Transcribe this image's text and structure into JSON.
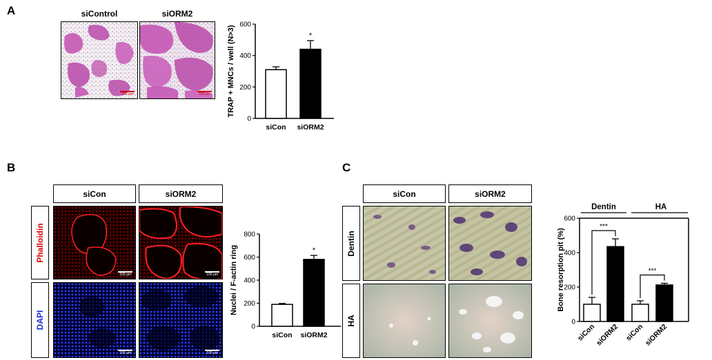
{
  "panels": {
    "A": {
      "letter": "A",
      "image_titles": [
        "siControl",
        "siORM2"
      ],
      "scale_text": "200 μm"
    },
    "B": {
      "letter": "B",
      "col_labels": [
        "siCon",
        "siORM2"
      ],
      "row_labels": [
        "Phalloidin",
        "DAPI"
      ],
      "scale_text": "100 μm"
    },
    "C": {
      "letter": "C",
      "col_labels": [
        "siCon",
        "siORM2"
      ],
      "row_labels": [
        "Dentin",
        "HA"
      ]
    }
  },
  "chart_data": [
    {
      "id": "A",
      "type": "bar",
      "categories": [
        "siCon",
        "siORM2"
      ],
      "values": [
        310,
        440
      ],
      "errors": [
        18,
        55
      ],
      "ylabel": "TRAP + MNCs / well (N>3)",
      "ylim": [
        0,
        600
      ],
      "yticks": [
        0,
        200,
        400,
        600
      ],
      "significance": "*",
      "bar_colors": [
        "#ffffff",
        "#000000"
      ]
    },
    {
      "id": "B",
      "type": "bar",
      "categories": [
        "siCon",
        "siORM2"
      ],
      "values": [
        190,
        580
      ],
      "errors": [
        8,
        35
      ],
      "ylabel": "Nuclei / F-actin ring",
      "ylim": [
        0,
        800
      ],
      "yticks": [
        0,
        200,
        400,
        600,
        800
      ],
      "significance": "*",
      "bar_colors": [
        "#ffffff",
        "#000000"
      ]
    },
    {
      "id": "C",
      "type": "bar",
      "groups": [
        "Dentin",
        "HA"
      ],
      "categories": [
        "siCon",
        "siORM2",
        "siCon",
        "siORM2"
      ],
      "values": [
        100,
        435,
        100,
        212
      ],
      "errors": [
        40,
        45,
        20,
        10
      ],
      "ylabel": "Bone resorption pit (%)",
      "ylim": [
        0,
        600
      ],
      "yticks": [
        0,
        200,
        400,
        600
      ],
      "significance": [
        "***",
        "***"
      ],
      "bar_colors": [
        "#ffffff",
        "#000000",
        "#ffffff",
        "#000000"
      ]
    }
  ]
}
